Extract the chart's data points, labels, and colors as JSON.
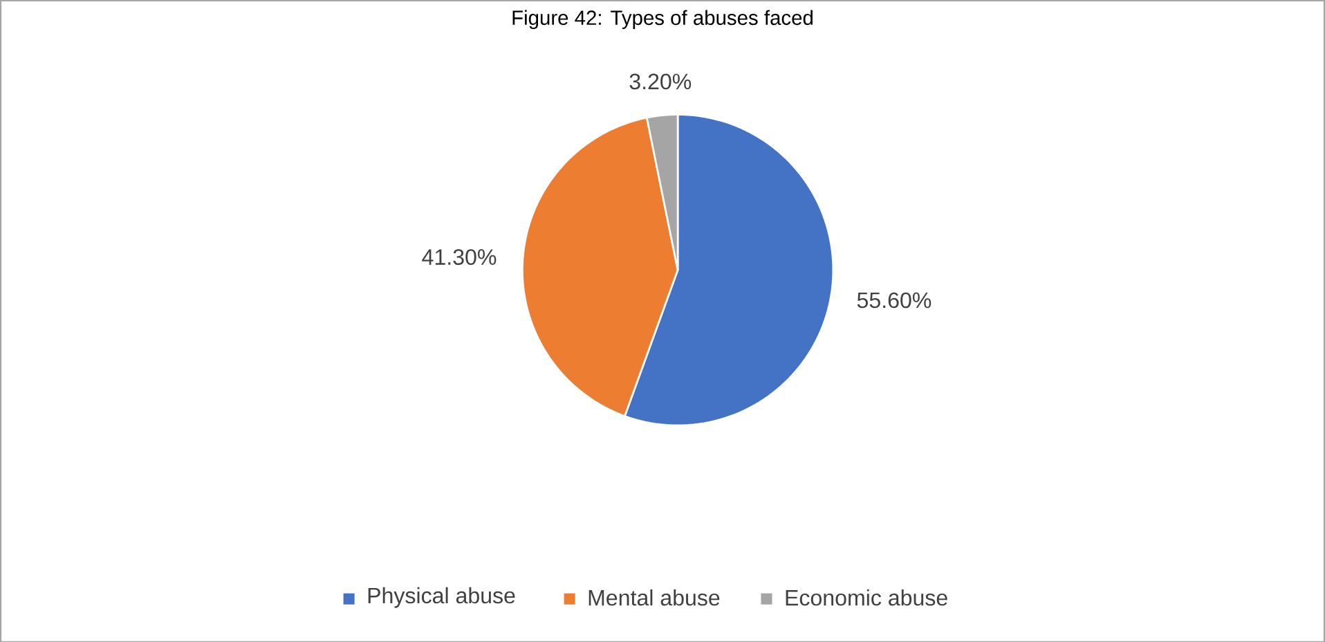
{
  "chart_data": {
    "type": "pie",
    "title": "Figure 42: Types of abuses faced",
    "categories": [
      "Physical abuse",
      "Mental abuse",
      "Economic abuse"
    ],
    "values": [
      55.6,
      41.3,
      3.2
    ],
    "colors": [
      "#4472c4",
      "#ed7d31",
      "#a5a5a5"
    ],
    "value_labels": [
      "55.60%",
      "41.30%",
      "3.20%"
    ],
    "legend": "bottom"
  }
}
